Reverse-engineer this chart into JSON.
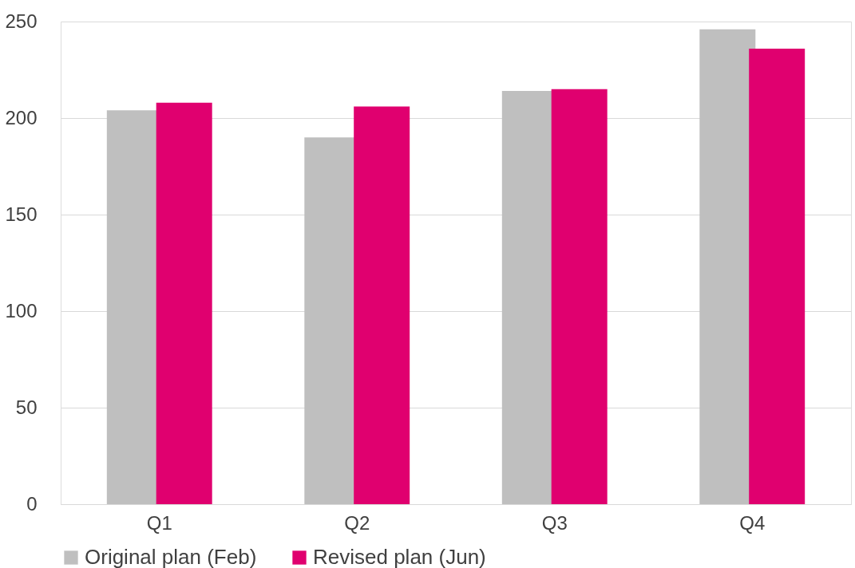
{
  "chart_data": {
    "type": "bar",
    "categories": [
      "Q1",
      "Q2",
      "Q3",
      "Q4"
    ],
    "series": [
      {
        "name": "Original plan (Feb)",
        "color": "#bfbfbf",
        "values": [
          204,
          190,
          214,
          246
        ]
      },
      {
        "name": "Revised plan (Jun)",
        "color": "#e0006f",
        "values": [
          208,
          206,
          215,
          236
        ]
      }
    ],
    "ylim": [
      0,
      250
    ],
    "yticks": [
      0,
      50,
      100,
      150,
      200,
      250
    ],
    "grid": "y",
    "legend": "bottom"
  }
}
